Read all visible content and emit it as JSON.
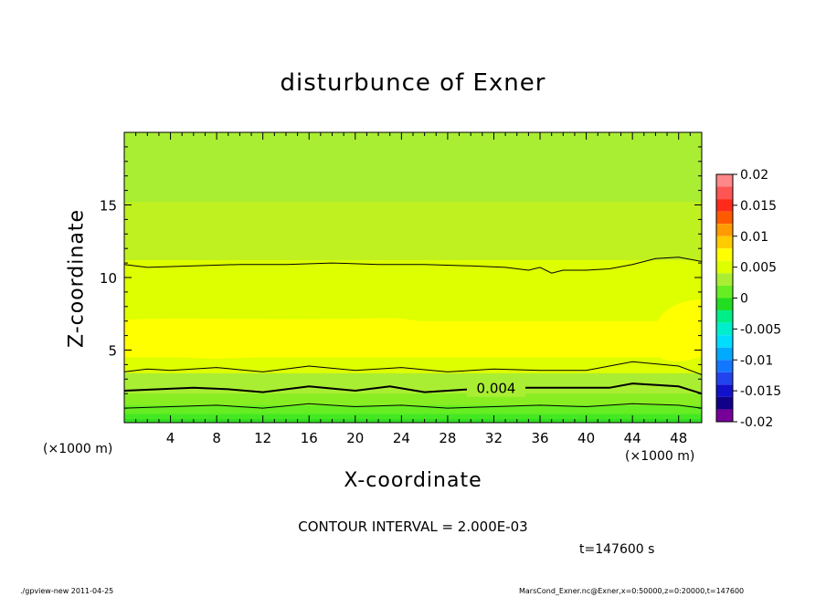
{
  "chart_data": {
    "type": "heatmap",
    "title": "disturbunce of Exner",
    "xlabel": "X-coordinate",
    "ylabel": "Z-coordinate",
    "x_unit_label_left": "(×1000 m)",
    "x_unit_label_right": "(×1000 m)",
    "xlim": [
      0,
      50
    ],
    "ylim": [
      0,
      20
    ],
    "x_ticks": [
      4,
      8,
      12,
      16,
      20,
      24,
      28,
      32,
      36,
      40,
      44,
      48
    ],
    "y_ticks": [
      5,
      10,
      15
    ],
    "colorbar": {
      "ticks": [
        "0.02",
        "0.015",
        "0.01",
        "0.005",
        "0",
        "-0.005",
        "-0.01",
        "-0.015",
        "-0.02"
      ],
      "levels": [
        {
          "lo": 0.018,
          "hi": 0.02,
          "color": "#ff8888"
        },
        {
          "lo": 0.016,
          "hi": 0.018,
          "color": "#ff5555"
        },
        {
          "lo": 0.014,
          "hi": 0.016,
          "color": "#ff2a1a"
        },
        {
          "lo": 0.012,
          "hi": 0.014,
          "color": "#ff5a00"
        },
        {
          "lo": 0.01,
          "hi": 0.012,
          "color": "#ff9a00"
        },
        {
          "lo": 0.008,
          "hi": 0.01,
          "color": "#ffcc00"
        },
        {
          "lo": 0.006,
          "hi": 0.008,
          "color": "#ffff00"
        },
        {
          "lo": 0.004,
          "hi": 0.006,
          "color": "#ddff00"
        },
        {
          "lo": 0.002,
          "hi": 0.004,
          "color": "#aaee33"
        },
        {
          "lo": 0.0,
          "hi": 0.002,
          "color": "#66ee22"
        },
        {
          "lo": -0.002,
          "hi": 0.0,
          "color": "#22dd22"
        },
        {
          "lo": -0.004,
          "hi": -0.002,
          "color": "#00ee88"
        },
        {
          "lo": -0.006,
          "hi": -0.004,
          "color": "#00eecc"
        },
        {
          "lo": -0.008,
          "hi": -0.006,
          "color": "#00ddff"
        },
        {
          "lo": -0.01,
          "hi": -0.008,
          "color": "#00aaff"
        },
        {
          "lo": -0.012,
          "hi": -0.01,
          "color": "#1177ff"
        },
        {
          "lo": -0.014,
          "hi": -0.012,
          "color": "#2244ee"
        },
        {
          "lo": -0.016,
          "hi": -0.014,
          "color": "#1111cc"
        },
        {
          "lo": -0.018,
          "hi": -0.016,
          "color": "#110088"
        },
        {
          "lo": -0.02,
          "hi": -0.018,
          "color": "#770099"
        }
      ]
    },
    "fields": [
      {
        "z_top": 20,
        "color": "#aaee33"
      },
      {
        "z_top": 15.2,
        "color": "#bff020"
      },
      {
        "z_top": 11.2,
        "color": "#ddff00"
      },
      {
        "z_top": 7.0,
        "color": "#ffff00"
      },
      {
        "z_top": 4.5,
        "color": "#ddff00"
      },
      {
        "z_top": 3.4,
        "color": "#aaee33"
      },
      {
        "z_top": 2.0,
        "color": "#88ee22"
      },
      {
        "z_top": 1.2,
        "color": "#66ee22"
      },
      {
        "z_top": 0.6,
        "color": "#44e822"
      }
    ],
    "contours": [
      {
        "x": [
          0,
          2,
          6,
          10,
          14,
          18,
          22,
          26,
          30,
          33,
          35,
          36,
          37,
          38,
          40,
          42,
          44,
          46,
          48,
          50
        ],
        "z": [
          10.9,
          10.7,
          10.8,
          10.9,
          10.9,
          11.0,
          10.9,
          10.9,
          10.8,
          10.7,
          10.5,
          10.7,
          10.3,
          10.5,
          10.5,
          10.6,
          10.9,
          11.3,
          11.4,
          11.1
        ],
        "width": 1
      },
      {
        "x": [
          0,
          2,
          4,
          8,
          12,
          16,
          20,
          24,
          28,
          32,
          36,
          40,
          44,
          48,
          50
        ],
        "z": [
          3.5,
          3.7,
          3.6,
          3.8,
          3.5,
          3.9,
          3.6,
          3.8,
          3.5,
          3.7,
          3.6,
          3.6,
          4.2,
          3.9,
          3.3
        ],
        "width": 1
      },
      {
        "x": [
          0,
          3,
          6,
          9,
          12,
          16,
          20,
          23,
          26,
          30,
          34,
          38,
          42,
          44,
          48,
          50
        ],
        "z": [
          2.2,
          2.3,
          2.4,
          2.3,
          2.1,
          2.5,
          2.2,
          2.5,
          2.1,
          2.3,
          2.4,
          2.4,
          2.4,
          2.7,
          2.5,
          2.0
        ],
        "width": 2,
        "label": "0.004",
        "label_x": 32.2
      },
      {
        "x": [
          0,
          4,
          8,
          12,
          16,
          20,
          24,
          28,
          32,
          36,
          40,
          44,
          48,
          50
        ],
        "z": [
          1.0,
          1.1,
          1.2,
          1.0,
          1.3,
          1.1,
          1.2,
          1.0,
          1.1,
          1.2,
          1.1,
          1.3,
          1.2,
          1.0
        ],
        "width": 1
      }
    ],
    "grid": false
  },
  "annotations": {
    "contour_interval": "CONTOUR INTERVAL = 2.000E-03",
    "time": "t=147600  s",
    "footer_left": "./gpview-new   2011-04-25",
    "footer_right": "MarsCond_Exner.nc@Exner,x=0:50000,z=0:20000,t=147600"
  }
}
